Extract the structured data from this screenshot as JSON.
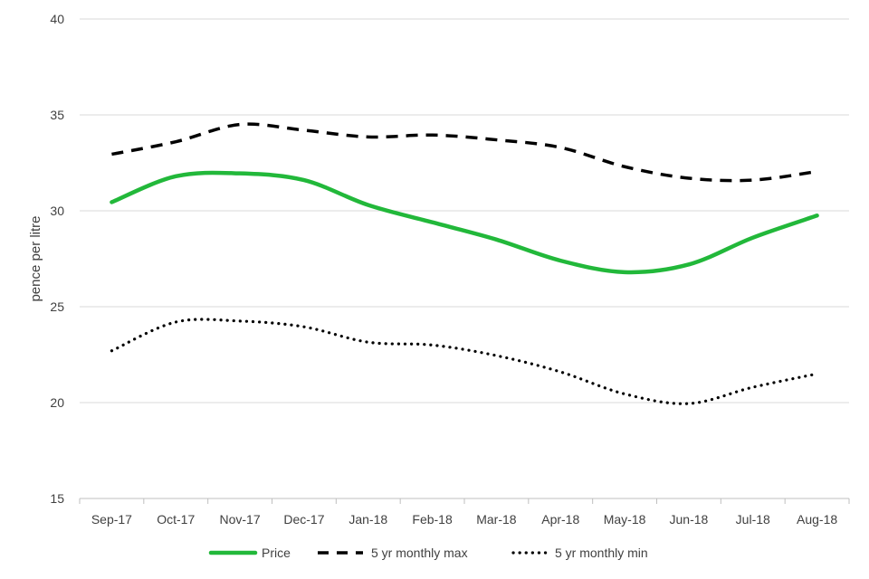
{
  "chart_data": {
    "type": "line",
    "title": "",
    "xlabel": "",
    "ylabel": "pence per litre",
    "ylim": [
      15,
      40
    ],
    "yticks": [
      15,
      20,
      25,
      30,
      35,
      40
    ],
    "grid": true,
    "legend_position": "bottom",
    "categories": [
      "Sep-17",
      "Oct-17",
      "Nov-17",
      "Dec-17",
      "Jan-18",
      "Feb-18",
      "Mar-18",
      "Apr-18",
      "May-18",
      "Jun-18",
      "Jul-18",
      "Aug-18"
    ],
    "series": [
      {
        "name": "Price",
        "color": "#22b83a",
        "style": "solid",
        "values": [
          30.45,
          31.8,
          31.95,
          31.6,
          30.3,
          29.4,
          28.5,
          27.4,
          26.8,
          27.2,
          28.6,
          29.75
        ]
      },
      {
        "name": "5 yr monthly max",
        "color": "#000000",
        "style": "dashed",
        "values": [
          32.95,
          33.6,
          34.5,
          34.2,
          33.85,
          33.95,
          33.7,
          33.3,
          32.3,
          31.7,
          31.6,
          32.05
        ]
      },
      {
        "name": "5 yr monthly min",
        "color": "#000000",
        "style": "dotted",
        "values": [
          22.7,
          24.2,
          24.25,
          23.95,
          23.15,
          23.0,
          22.45,
          21.6,
          20.45,
          19.95,
          20.8,
          21.5
        ]
      }
    ]
  }
}
